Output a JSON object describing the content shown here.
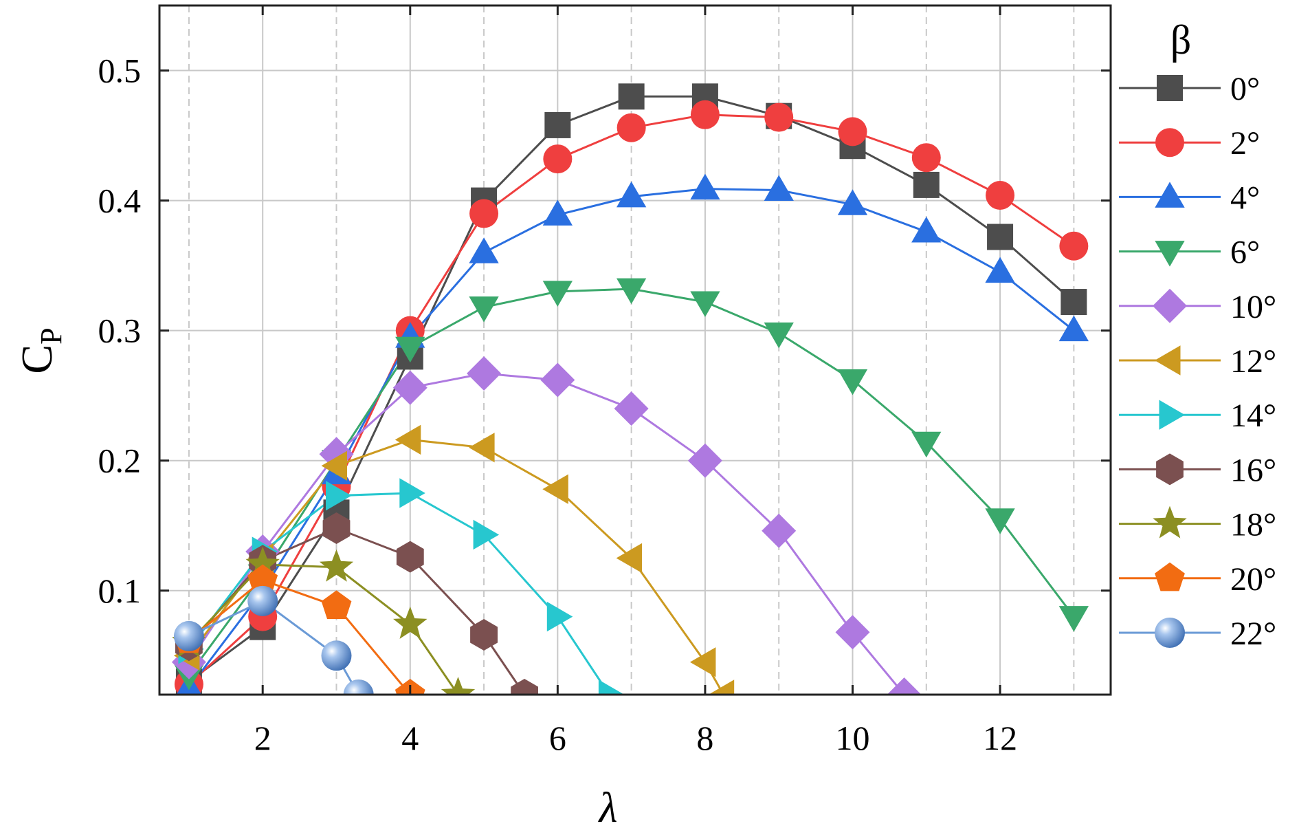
{
  "chart_data": {
    "type": "line",
    "xlabel": "λ",
    "ylabel_main": "C",
    "ylabel_sub": "P",
    "legend_title": "β",
    "legend_position": "right",
    "xlim": [
      0.6,
      13.5
    ],
    "ylim": [
      0.02,
      0.55
    ],
    "xticks": [
      2,
      4,
      6,
      8,
      10,
      12
    ],
    "yticks": [
      0.1,
      0.2,
      0.3,
      0.4,
      0.5
    ],
    "xtick_labels": [
      "2",
      "4",
      "6",
      "8",
      "10",
      "12"
    ],
    "ytick_labels": [
      "0.1",
      "0.2",
      "0.3",
      "0.4",
      "0.5"
    ],
    "x_grid_solid": [
      2,
      4,
      6,
      8,
      10,
      12
    ],
    "x_grid_dashed": [
      1,
      3,
      5,
      7,
      9,
      11,
      13
    ],
    "grid": true,
    "series": [
      {
        "name": "0°",
        "color": "#4d4d4d",
        "marker": "square",
        "x": [
          1,
          2,
          3,
          4,
          5,
          6,
          7,
          8,
          9,
          10,
          11,
          12,
          13
        ],
        "y": [
          0.03,
          0.072,
          0.16,
          0.28,
          0.4,
          0.458,
          0.48,
          0.48,
          0.465,
          0.442,
          0.412,
          0.372,
          0.322
        ]
      },
      {
        "name": "2°",
        "color": "#ef3f3f",
        "marker": "circle",
        "x": [
          1,
          2,
          3,
          4,
          5,
          6,
          7,
          8,
          9,
          10,
          11,
          12,
          13
        ],
        "y": [
          0.028,
          0.08,
          0.18,
          0.3,
          0.39,
          0.432,
          0.456,
          0.466,
          0.464,
          0.453,
          0.433,
          0.404,
          0.365
        ]
      },
      {
        "name": "4°",
        "color": "#2a6fe0",
        "marker": "triangle-up",
        "x": [
          1,
          2,
          3,
          4,
          5,
          6,
          7,
          8,
          9,
          10,
          11,
          12,
          13
        ],
        "y": [
          0.025,
          0.1,
          0.19,
          0.295,
          0.36,
          0.389,
          0.403,
          0.409,
          0.408,
          0.397,
          0.376,
          0.345,
          0.3
        ]
      },
      {
        "name": "6°",
        "color": "#3aa86b",
        "marker": "triangle-down",
        "x": [
          1,
          2,
          3,
          4,
          5,
          6,
          7,
          8,
          9,
          10,
          11,
          12,
          13
        ],
        "y": [
          0.035,
          0.112,
          0.2,
          0.287,
          0.318,
          0.33,
          0.332,
          0.322,
          0.298,
          0.262,
          0.214,
          0.155,
          0.08
        ]
      },
      {
        "name": "10°",
        "color": "#ae79e0",
        "marker": "diamond",
        "x": [
          1,
          2,
          3,
          4,
          5,
          6,
          7,
          8,
          9,
          10,
          10.7
        ],
        "y": [
          0.045,
          0.13,
          0.205,
          0.256,
          0.267,
          0.262,
          0.24,
          0.2,
          0.146,
          0.068,
          0.02
        ]
      },
      {
        "name": "12°",
        "color": "#cc9a20",
        "marker": "triangle-left",
        "x": [
          1,
          2,
          3,
          4,
          5,
          6,
          7,
          8,
          8.25
        ],
        "y": [
          0.05,
          0.125,
          0.196,
          0.216,
          0.21,
          0.178,
          0.125,
          0.045,
          0.02
        ]
      },
      {
        "name": "14°",
        "color": "#27c7cf",
        "marker": "triangle-right",
        "x": [
          1,
          2,
          3,
          4,
          5,
          6,
          6.7
        ],
        "y": [
          0.055,
          0.13,
          0.173,
          0.175,
          0.143,
          0.08,
          0.02
        ]
      },
      {
        "name": "16°",
        "color": "#7b5050",
        "marker": "hexagon",
        "x": [
          1,
          2,
          3,
          4,
          5,
          5.55
        ],
        "y": [
          0.058,
          0.123,
          0.148,
          0.126,
          0.066,
          0.02
        ]
      },
      {
        "name": "18°",
        "color": "#8c8f22",
        "marker": "star",
        "x": [
          1,
          2,
          3,
          4,
          4.65
        ],
        "y": [
          0.06,
          0.12,
          0.118,
          0.074,
          0.02
        ]
      },
      {
        "name": "20°",
        "color": "#f26c12",
        "marker": "pentagon",
        "x": [
          1,
          2,
          3,
          4
        ],
        "y": [
          0.062,
          0.108,
          0.088,
          0.02
        ]
      },
      {
        "name": "22°",
        "color": "#6a9ad6",
        "marker": "sphere",
        "x": [
          1,
          2,
          3,
          3.3
        ],
        "y": [
          0.065,
          0.092,
          0.05,
          0.02
        ]
      }
    ]
  }
}
